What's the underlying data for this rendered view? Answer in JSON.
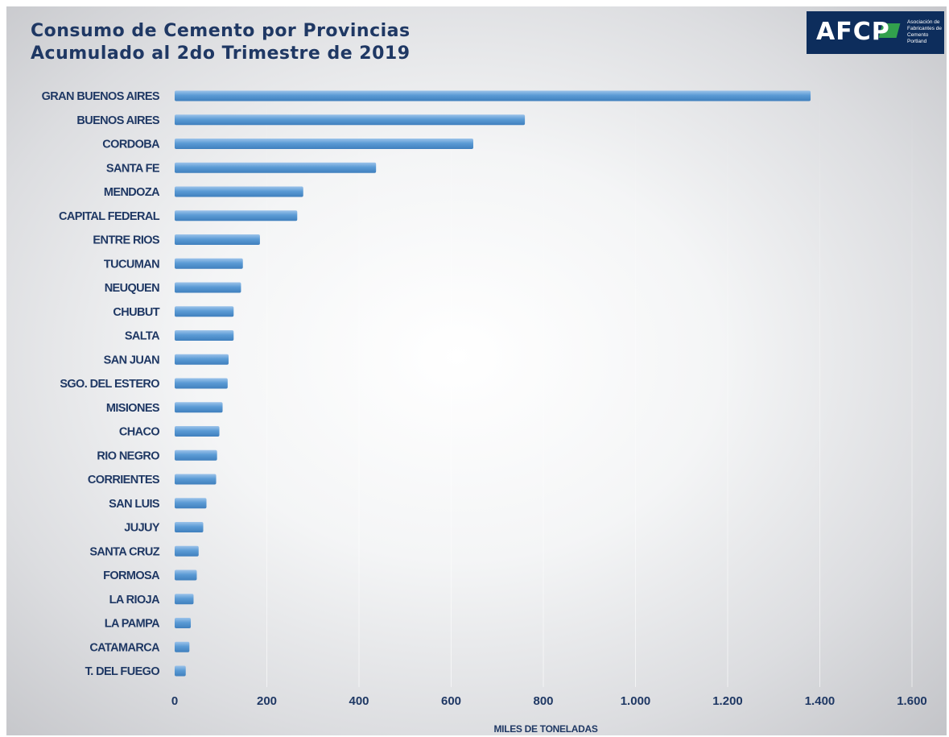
{
  "title_line1": "Consumo de Cemento por Provincias",
  "title_line2": "Acumulado al 2do Trimestre de 2019",
  "logo": {
    "mark": "AFCP",
    "text": "Asociación de Fabricantes de Cemento Portland",
    "bg_color": "#0d2d5c",
    "accent_color": "#39b54a"
  },
  "chart_data": {
    "type": "bar",
    "orientation": "horizontal",
    "categories": [
      "GRAN BUENOS AIRES",
      "BUENOS AIRES",
      "CORDOBA",
      "SANTA FE",
      "MENDOZA",
      "CAPITAL FEDERAL",
      "ENTRE RIOS",
      "TUCUMAN",
      "NEUQUEN",
      "CHUBUT",
      "SALTA",
      "SAN JUAN",
      "SGO. DEL ESTERO",
      "MISIONES",
      "CHACO",
      "RIO NEGRO",
      "CORRIENTES",
      "SAN LUIS",
      "JUJUY",
      "SANTA CRUZ",
      "FORMOSA",
      "LA RIOJA",
      "LA PAMPA",
      "CATAMARCA",
      "T. DEL FUEGO"
    ],
    "values": [
      1380,
      760,
      648,
      437,
      279,
      266,
      185,
      148,
      144,
      128,
      128,
      117,
      115,
      104,
      97,
      92,
      90,
      69,
      62,
      52,
      48,
      41,
      35,
      32,
      24
    ],
    "xlabel": "MILES DE TONELADAS",
    "xlim": [
      0,
      1600
    ],
    "x_ticks": [
      0,
      200,
      400,
      600,
      800,
      1000,
      1200,
      1400,
      1600
    ],
    "x_tick_labels": [
      "0",
      "200",
      "400",
      "600",
      "800",
      "1.000",
      "1.200",
      "1.400",
      "1.600"
    ],
    "grid": true,
    "bar_color": "#5b9bd5",
    "text_color": "#1f3864"
  }
}
